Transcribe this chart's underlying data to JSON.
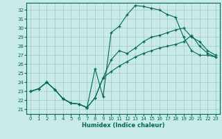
{
  "xlabel": "Humidex (Indice chaleur)",
  "bg_color": "#c8eae8",
  "grid_color": "#a0c8c0",
  "line_color": "#006655",
  "xlim": [
    -0.5,
    23.5
  ],
  "ylim": [
    20.5,
    32.8
  ],
  "yticks": [
    21,
    22,
    23,
    24,
    25,
    26,
    27,
    28,
    29,
    30,
    31,
    32
  ],
  "xticks": [
    0,
    1,
    2,
    3,
    4,
    5,
    6,
    7,
    8,
    9,
    10,
    11,
    12,
    13,
    14,
    15,
    16,
    17,
    18,
    19,
    20,
    21,
    22,
    23
  ],
  "line1_x": [
    0,
    1,
    2,
    3,
    4,
    5,
    6,
    7,
    8,
    9,
    10,
    11,
    12,
    13,
    14,
    15,
    16,
    17,
    18,
    19,
    20,
    21,
    22,
    23
  ],
  "line1_y": [
    23.0,
    23.3,
    24.0,
    23.2,
    22.2,
    21.7,
    21.6,
    21.2,
    22.3,
    24.5,
    26.5,
    27.5,
    27.2,
    27.8,
    28.5,
    29.0,
    29.2,
    29.5,
    29.8,
    30.0,
    29.0,
    28.5,
    27.5,
    27.0
  ],
  "line2_x": [
    0,
    1,
    2,
    3,
    4,
    5,
    6,
    7,
    8,
    9,
    10,
    11,
    12,
    13,
    14,
    15,
    16,
    17,
    18,
    19,
    20,
    21,
    22,
    23
  ],
  "line2_y": [
    23.0,
    23.3,
    24.0,
    23.2,
    22.2,
    21.7,
    21.6,
    21.2,
    25.5,
    22.4,
    29.5,
    30.2,
    31.5,
    32.5,
    32.4,
    32.2,
    32.0,
    31.5,
    31.2,
    29.0,
    27.5,
    27.0,
    27.0,
    26.8
  ],
  "line3_x": [
    0,
    1,
    2,
    3,
    4,
    5,
    6,
    7,
    8,
    9,
    10,
    11,
    12,
    13,
    14,
    15,
    16,
    17,
    18,
    19,
    20,
    21,
    22,
    23
  ],
  "line3_y": [
    23.0,
    23.3,
    24.0,
    23.2,
    22.2,
    21.7,
    21.6,
    21.2,
    22.3,
    24.5,
    25.2,
    25.8,
    26.3,
    26.8,
    27.2,
    27.5,
    27.8,
    28.0,
    28.2,
    28.5,
    29.2,
    28.0,
    27.2,
    26.8
  ]
}
